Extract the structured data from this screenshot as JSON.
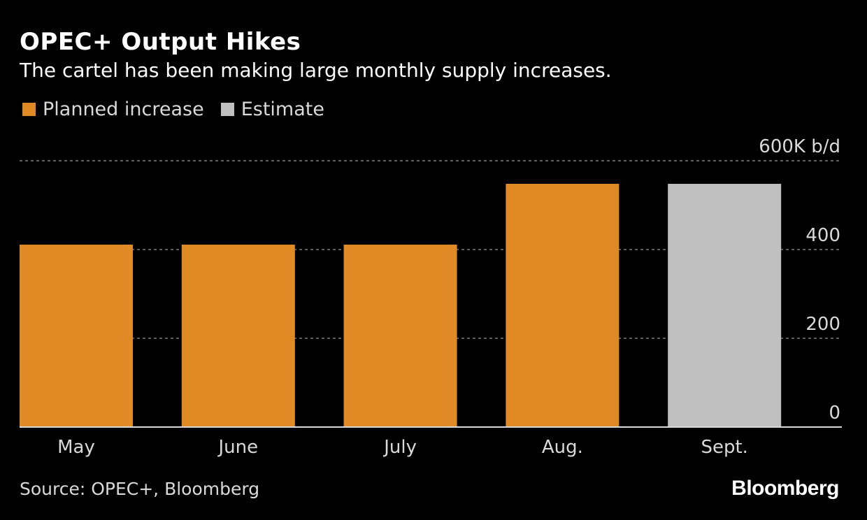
{
  "header": {
    "title": "OPEC+ Output Hikes",
    "subtitle": "The cartel has been making large monthly supply increases."
  },
  "legend": {
    "items": [
      {
        "label": "Planned increase",
        "color": "#E08A25"
      },
      {
        "label": "Estimate",
        "color": "#C0C0C0"
      }
    ]
  },
  "chart_data": {
    "type": "bar",
    "title": "OPEC+ Output Hikes",
    "subtitle": "The cartel has been making large monthly supply increases.",
    "categories": [
      "May",
      "June",
      "July",
      "Aug.",
      "Sept."
    ],
    "values": [
      411,
      411,
      411,
      548,
      548
    ],
    "series_by_bar": [
      "Planned increase",
      "Planned increase",
      "Planned increase",
      "Planned increase",
      "Estimate"
    ],
    "unit": "K b/d",
    "ylim": [
      0,
      600
    ],
    "yticks": [
      0,
      200,
      400,
      600
    ],
    "ytick_labels": [
      "0",
      "200",
      "400",
      "600K b/d"
    ],
    "grid": true,
    "xlabel": "",
    "ylabel": "",
    "colors": {
      "Planned increase": "#E08A25",
      "Estimate": "#C0C0C0",
      "grid": "#7a7a7a",
      "axis": "#d9d9d9",
      "tick_text": "#d9d9d9"
    }
  },
  "footer": {
    "source": "Source: OPEC+, Bloomberg",
    "brand": "Bloomberg"
  }
}
